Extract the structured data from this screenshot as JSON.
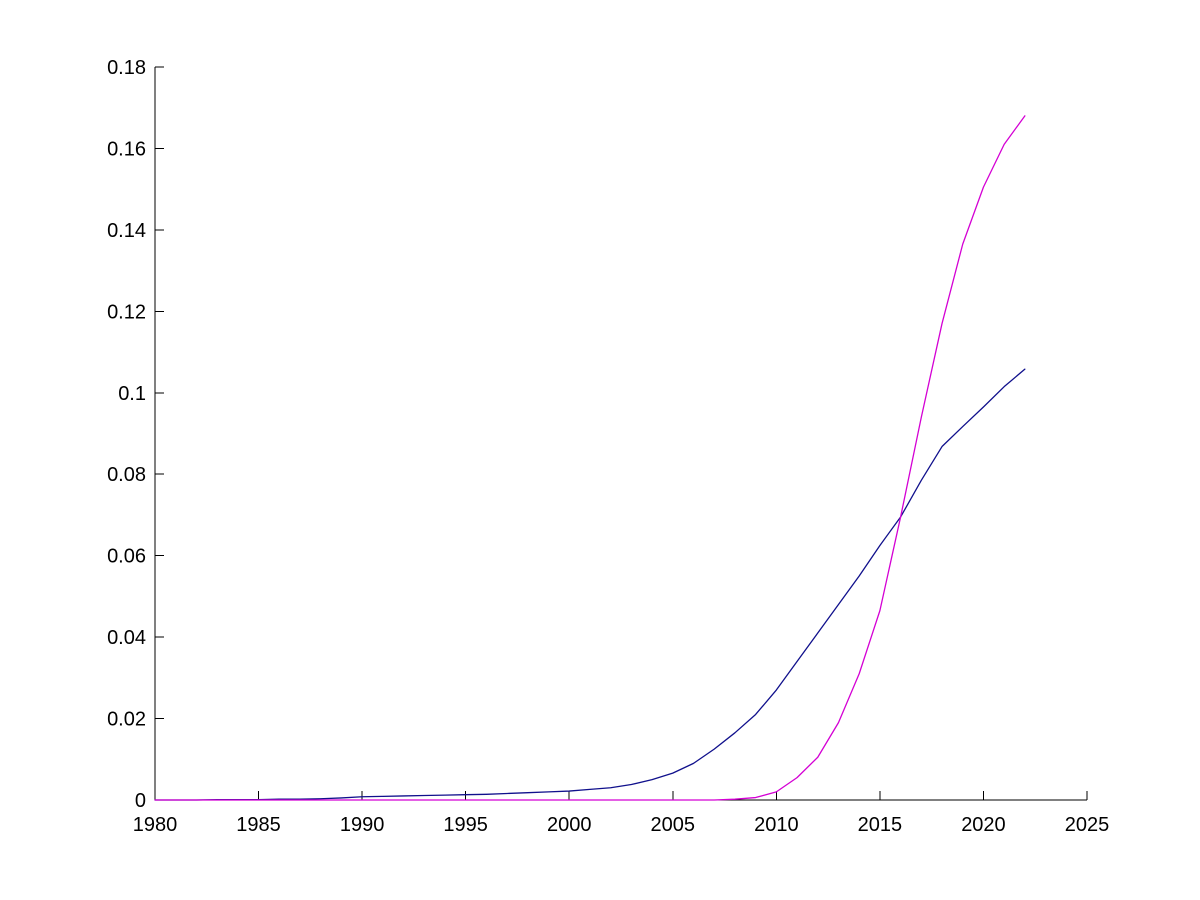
{
  "figure": {
    "background": "#ffffff",
    "axis_color": "#000000",
    "tick_label_color": "#000000"
  },
  "chart_data": {
    "type": "line",
    "title": "",
    "xlabel": "",
    "ylabel": "",
    "grid": false,
    "legend": null,
    "box": false,
    "xlim": [
      1980,
      2025
    ],
    "ylim": [
      0,
      0.18
    ],
    "xticks": {
      "values": [
        1980,
        1985,
        1990,
        1995,
        2000,
        2005,
        2010,
        2015,
        2020,
        2025
      ],
      "labels": [
        "1980",
        "1985",
        "1990",
        "1995",
        "2000",
        "2005",
        "2010",
        "2015",
        "2020",
        "2025"
      ]
    },
    "yticks": {
      "values": [
        0,
        0.02,
        0.04,
        0.06,
        0.08,
        0.1,
        0.12,
        0.14,
        0.16,
        0.18
      ],
      "labels": [
        "0",
        "0.02",
        "0.04",
        "0.06",
        "0.08",
        "0.1",
        "0.12",
        "0.14",
        "0.16",
        "0.18"
      ]
    },
    "x": [
      1980,
      1981,
      1982,
      1983,
      1984,
      1985,
      1986,
      1987,
      1988,
      1989,
      1990,
      1991,
      1992,
      1993,
      1994,
      1995,
      1996,
      1997,
      1998,
      1999,
      2000,
      2001,
      2002,
      2003,
      2004,
      2005,
      2006,
      2007,
      2008,
      2009,
      2010,
      2011,
      2012,
      2013,
      2014,
      2015,
      2016,
      2017,
      2018,
      2019,
      2020,
      2021,
      2022
    ],
    "series": [
      {
        "name": "dark-blue-curve",
        "color": "#10108C",
        "values": [
          0.0,
          0.0,
          0.0,
          0.0001,
          0.0001,
          0.0001,
          0.0002,
          0.0002,
          0.0003,
          0.0005,
          0.0008,
          0.0009,
          0.001,
          0.0011,
          0.0012,
          0.0013,
          0.0014,
          0.0016,
          0.0018,
          0.002,
          0.0022,
          0.0026,
          0.003,
          0.0038,
          0.005,
          0.0066,
          0.009,
          0.0125,
          0.0165,
          0.021,
          0.027,
          0.034,
          0.041,
          0.048,
          0.055,
          0.0625,
          0.0695,
          0.0785,
          0.0868,
          0.0917,
          0.0965,
          0.1015,
          0.1058
        ]
      },
      {
        "name": "magenta-curve",
        "color": "#D400D4",
        "values": [
          0.0,
          0.0,
          0.0,
          0.0,
          0.0,
          0.0,
          0.0,
          0.0,
          0.0,
          0.0,
          0.0,
          0.0,
          0.0,
          0.0,
          0.0,
          0.0,
          0.0,
          0.0,
          0.0,
          0.0,
          0.0,
          0.0,
          0.0,
          0.0,
          0.0,
          0.0,
          0.0,
          0.0,
          0.0002,
          0.0006,
          0.002,
          0.0055,
          0.0105,
          0.019,
          0.031,
          0.0465,
          0.0695,
          0.094,
          0.117,
          0.1365,
          0.1505,
          0.161,
          0.168
        ]
      }
    ],
    "annotations": {
      "curves_cross_at": {
        "x": 2016,
        "y": 0.0695
      },
      "blue_end": {
        "x": 2022,
        "y": 0.1058
      },
      "magenta_end": {
        "x": 2022,
        "y": 0.168
      }
    }
  }
}
